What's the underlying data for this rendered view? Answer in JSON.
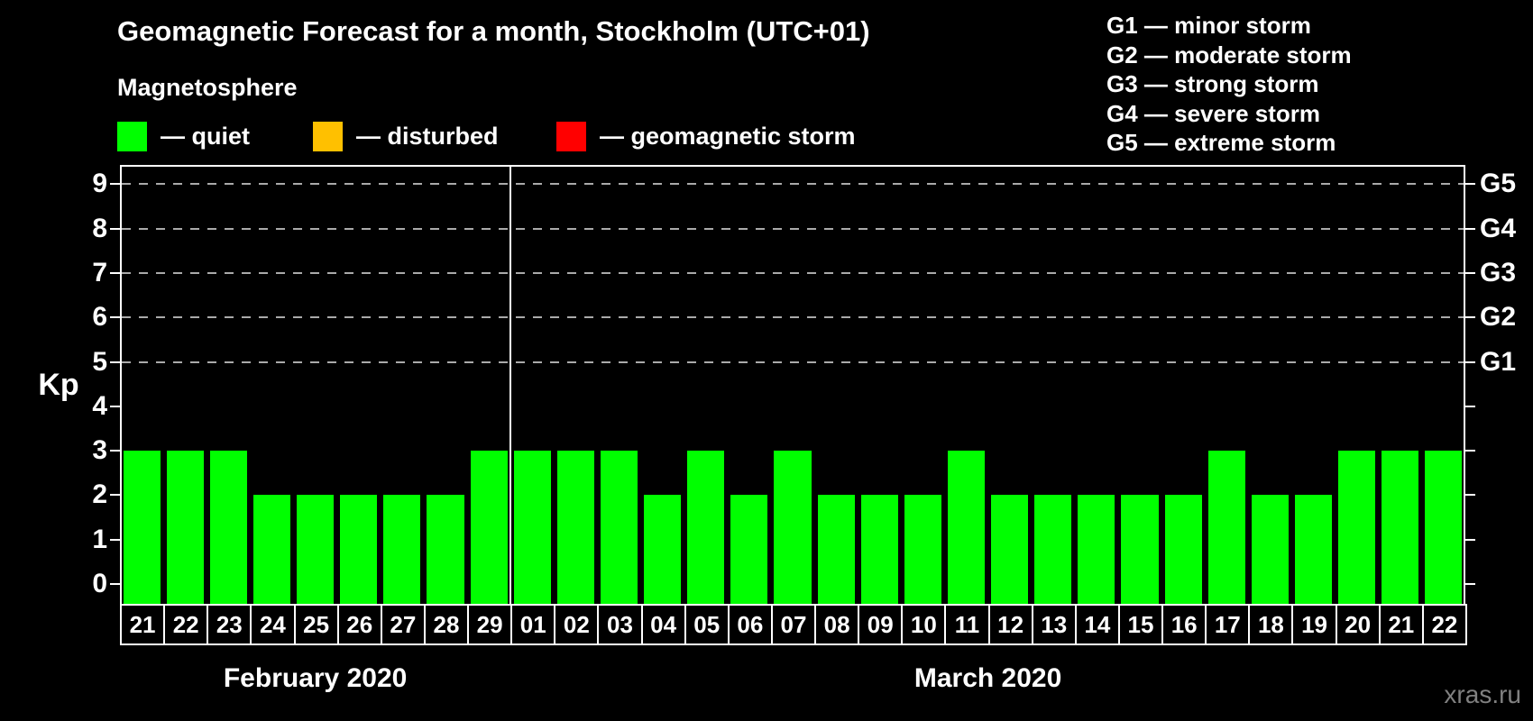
{
  "title": "Geomagnetic Forecast for a month, Stockholm (UTC+01)",
  "subtitle": "Magnetosphere",
  "legend": {
    "items": [
      {
        "label": "— quiet",
        "color": "#00ff00"
      },
      {
        "label": "— disturbed",
        "color": "#ffc000"
      },
      {
        "label": "— geomagnetic storm",
        "color": "#ff0000"
      }
    ]
  },
  "g_scale_legend": [
    "G1 — minor storm",
    "G2 — moderate storm",
    "G3 — strong storm",
    "G4 — severe storm",
    "G5 — extreme storm"
  ],
  "watermark": "xras.ru",
  "chart_data": {
    "type": "bar",
    "title": "Geomagnetic Forecast for a month, Stockholm (UTC+01)",
    "ylabel": "Kp",
    "ylim": [
      0,
      9
    ],
    "y_ticks": [
      0,
      1,
      2,
      3,
      4,
      5,
      6,
      7,
      8,
      9
    ],
    "grid": "dashed horizontal lines at G-storm levels only",
    "g_levels": [
      {
        "kp": 5,
        "label": "G1"
      },
      {
        "kp": 6,
        "label": "G2"
      },
      {
        "kp": 7,
        "label": "G3"
      },
      {
        "kp": 8,
        "label": "G4"
      },
      {
        "kp": 9,
        "label": "G5"
      }
    ],
    "bar_color": "#00ff00",
    "bar_status": "quiet",
    "months": [
      {
        "label": "February 2020",
        "days": [
          "21",
          "22",
          "23",
          "24",
          "25",
          "26",
          "27",
          "28",
          "29"
        ],
        "values": [
          3,
          3,
          3,
          2,
          2,
          2,
          2,
          2,
          3
        ]
      },
      {
        "label": "March 2020",
        "days": [
          "01",
          "02",
          "03",
          "04",
          "05",
          "06",
          "07",
          "08",
          "09",
          "10",
          "11",
          "12",
          "13",
          "14",
          "15",
          "16",
          "17",
          "18",
          "19",
          "20",
          "21",
          "22"
        ],
        "values": [
          3,
          3,
          3,
          2,
          3,
          2,
          3,
          2,
          2,
          2,
          3,
          2,
          2,
          2,
          2,
          2,
          3,
          2,
          2,
          3,
          3,
          3
        ]
      }
    ]
  }
}
